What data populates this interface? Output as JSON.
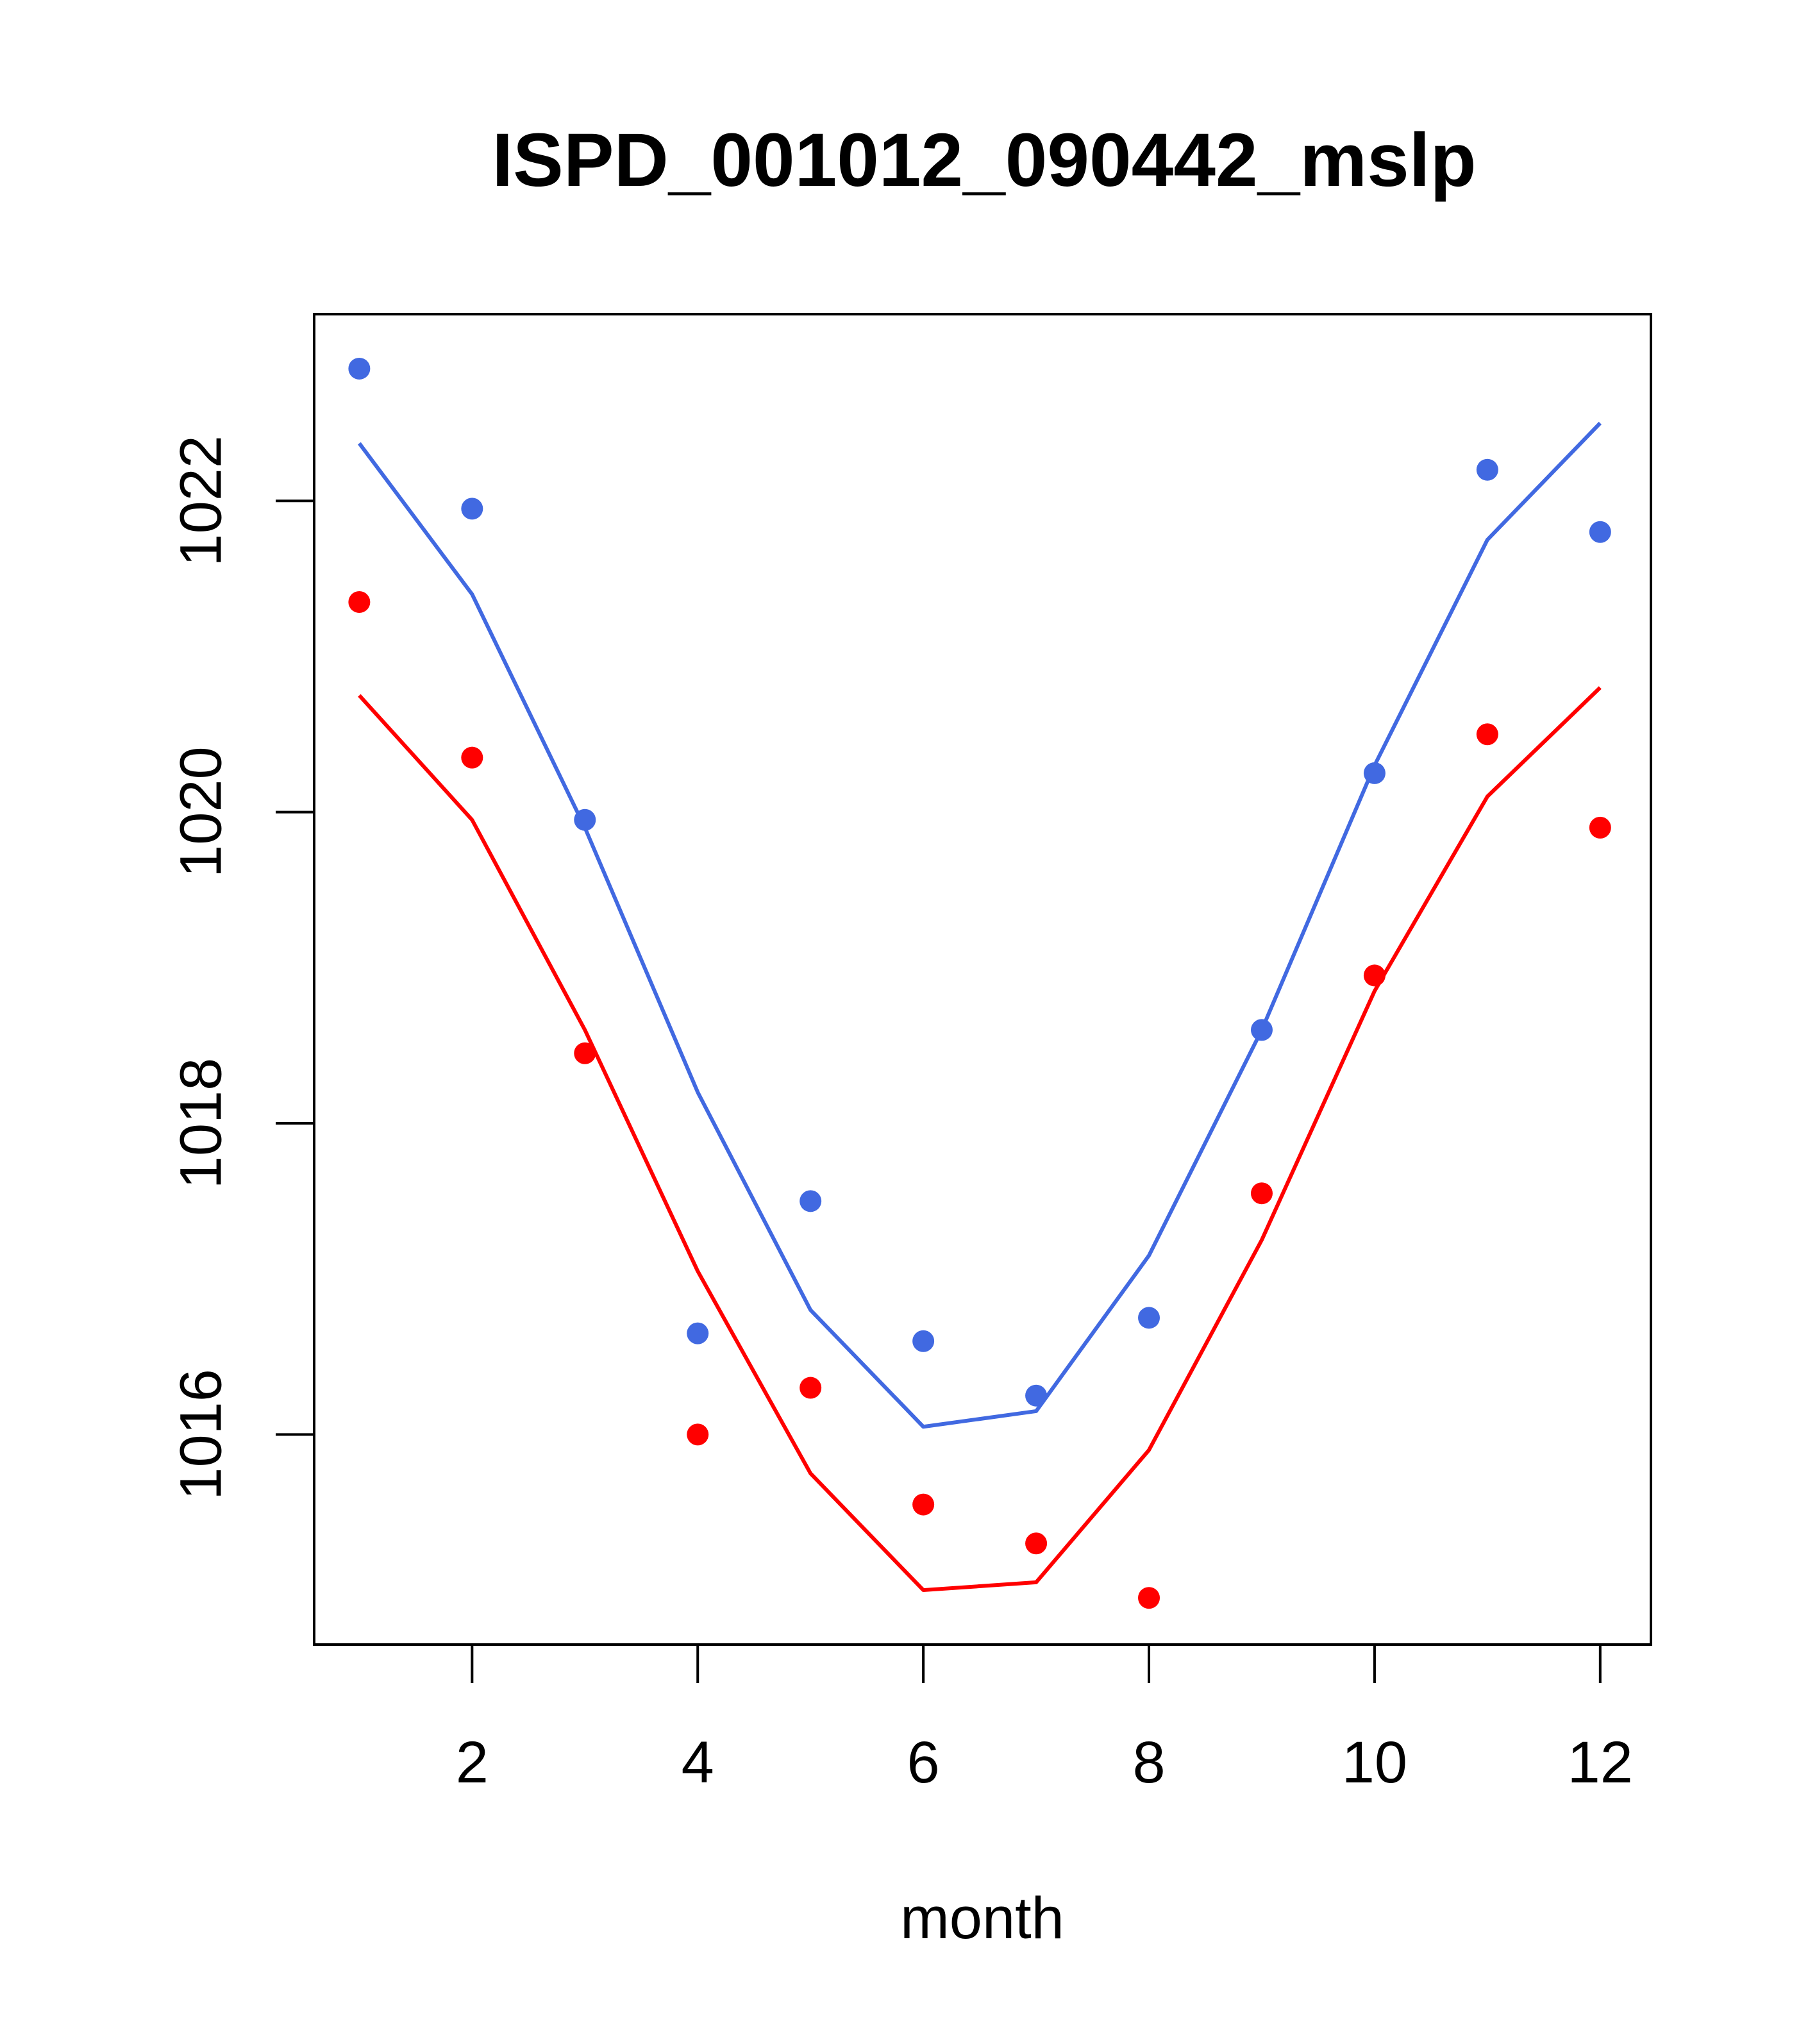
{
  "chart_data": {
    "type": "scatter",
    "title": "ISPD_001012_090442_mslp",
    "xlabel": "month",
    "ylabel": "",
    "xlim": [
      0.6,
      12.45
    ],
    "ylim": [
      1014.65,
      1023.2
    ],
    "x_ticks": [
      2,
      4,
      6,
      8,
      10,
      12
    ],
    "y_ticks": [
      1016,
      1018,
      1020,
      1022
    ],
    "grid": false,
    "legend": "none",
    "x": [
      1,
      2,
      3,
      4,
      5,
      6,
      7,
      8,
      9,
      10,
      11,
      12
    ],
    "series": [
      {
        "color": "#4169E1",
        "points": [
          1022.85,
          1021.95,
          1019.95,
          1016.65,
          1017.5,
          1016.6,
          1016.25,
          1016.75,
          1018.6,
          1020.25,
          1022.2,
          1021.8
        ],
        "line": [
          1022.37,
          1021.4,
          1019.9,
          1018.2,
          1016.8,
          1016.05,
          1016.15,
          1017.15,
          1018.6,
          1020.3,
          1021.75,
          1022.5
        ]
      },
      {
        "color": "#FF0000",
        "points": [
          1021.35,
          1020.35,
          1018.45,
          1016.0,
          1016.3,
          1015.55,
          1015.3,
          1014.95,
          1017.55,
          1018.95,
          1020.5,
          1019.9
        ],
        "line": [
          1020.75,
          1019.95,
          1018.6,
          1017.05,
          1015.75,
          1015.0,
          1015.05,
          1015.9,
          1017.25,
          1018.85,
          1020.1,
          1020.8
        ]
      }
    ]
  }
}
